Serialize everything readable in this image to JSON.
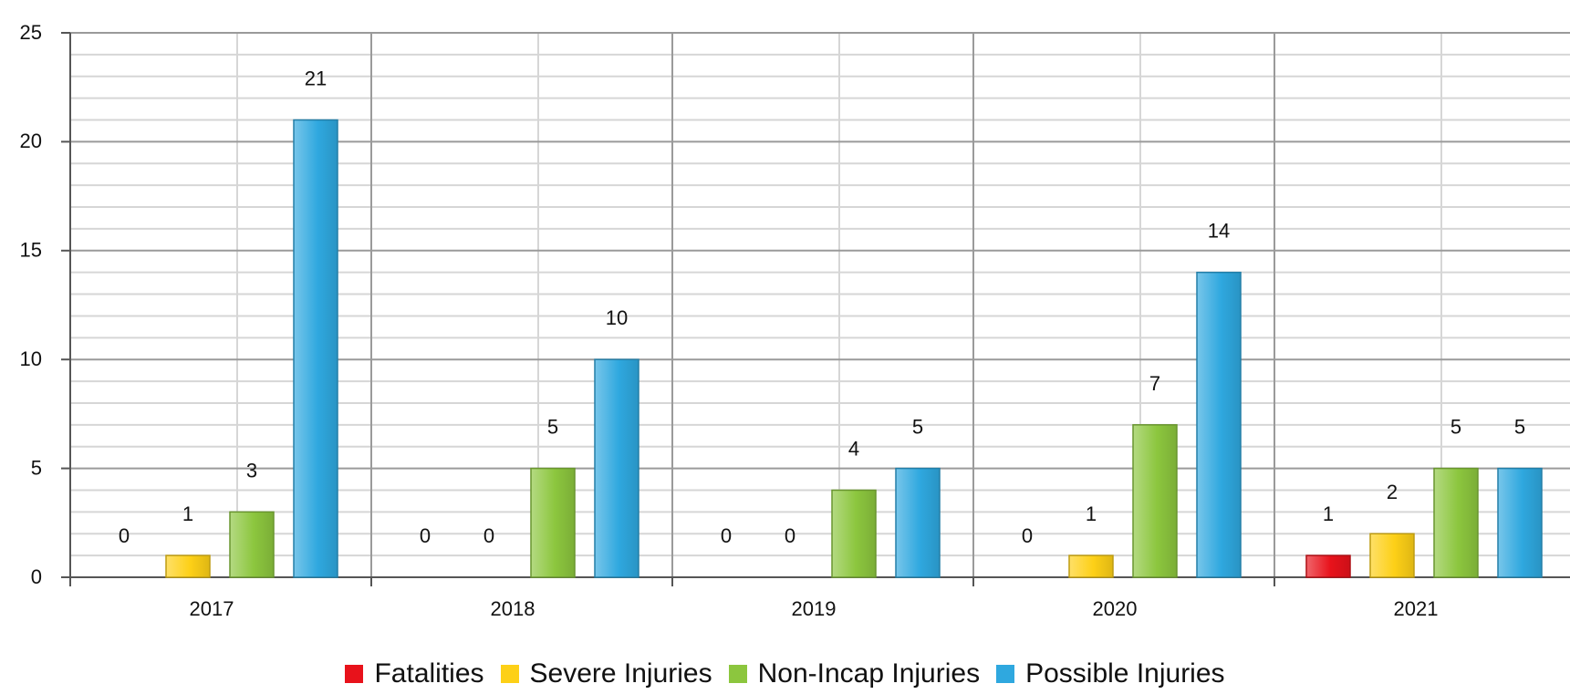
{
  "chart_data": {
    "type": "bar",
    "categories": [
      "2017",
      "2018",
      "2019",
      "2020",
      "2021"
    ],
    "series": [
      {
        "name": "Fatalities",
        "color": "#e8121b",
        "values": [
          0,
          0,
          0,
          0,
          1
        ]
      },
      {
        "name": "Severe Injuries",
        "color": "#fdd017",
        "values": [
          1,
          0,
          0,
          1,
          2
        ]
      },
      {
        "name": "Non-Incap Injuries",
        "color": "#8cc63e",
        "values": [
          3,
          5,
          4,
          7,
          5
        ]
      },
      {
        "name": "Possible Injuries",
        "color": "#2fa8df",
        "values": [
          21,
          10,
          5,
          14,
          5
        ]
      }
    ],
    "ylim": [
      0,
      25
    ],
    "yticks": [
      "0",
      "5",
      "10",
      "15",
      "20",
      "25"
    ],
    "grid": true,
    "legend_position": "bottom",
    "data_labels": true
  }
}
